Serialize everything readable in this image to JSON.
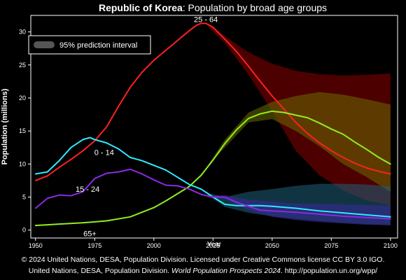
{
  "chart_data": {
    "type": "line",
    "title_bold": "Republic of Korea",
    "title_rest": ": Population by broad age groups",
    "xlabel": "Year",
    "ylabel": "Population (millions)",
    "xlim": [
      1948,
      2103
    ],
    "ylim": [
      -1.2,
      32.5
    ],
    "xticks": [
      1950,
      1975,
      2000,
      2025,
      2050,
      2075,
      2100
    ],
    "yticks": [
      0,
      5,
      10,
      15,
      20,
      25,
      30
    ],
    "grid": false,
    "legend": {
      "position": "top-left",
      "label": "95% prediction interval"
    },
    "series": [
      {
        "name": "25 - 64",
        "label_at": [
          2022,
          31.9
        ],
        "color": "#ff2020",
        "band_color": "#8b0000",
        "x": [
          1950,
          1955,
          1960,
          1965,
          1970,
          1975,
          1980,
          1985,
          1990,
          1995,
          2000,
          2005,
          2010,
          2015,
          2018,
          2020,
          2022,
          2025,
          2030,
          2035,
          2040,
          2045,
          2050,
          2055,
          2060,
          2065,
          2070,
          2075,
          2080,
          2085,
          2090,
          2095,
          2100
        ],
        "values": [
          7.5,
          8.2,
          9.5,
          10.7,
          12.0,
          13.5,
          15.6,
          18.7,
          21.6,
          23.9,
          25.7,
          27.2,
          28.7,
          30.2,
          31.0,
          31.3,
          31.3,
          30.7,
          28.9,
          27.0,
          24.8,
          22.5,
          20.3,
          18.3,
          16.3,
          14.6,
          13.2,
          12.0,
          11.0,
          10.1,
          9.4,
          8.9,
          8.5
        ],
        "band_x": [
          2023,
          2030,
          2040,
          2050,
          2060,
          2070,
          2080,
          2090,
          2100
        ],
        "band_lower": [
          30.7,
          28.3,
          23.5,
          18.0,
          12.0,
          8.3,
          6.0,
          4.5,
          3.7
        ],
        "band_upper": [
          31.2,
          29.4,
          26.9,
          25.2,
          24.1,
          23.6,
          23.4,
          23.5,
          23.7
        ]
      },
      {
        "name": "65+",
        "label_at": [
          1973,
          -0.5
        ],
        "color": "#90ee20",
        "band_color": "#6b6b00",
        "x": [
          1950,
          1960,
          1970,
          1980,
          1990,
          2000,
          2005,
          2010,
          2015,
          2020,
          2025,
          2030,
          2035,
          2040,
          2045,
          2050,
          2055,
          2060,
          2065,
          2070,
          2075,
          2080,
          2085,
          2090,
          2095,
          2100
        ],
        "values": [
          0.7,
          0.9,
          1.1,
          1.4,
          2.0,
          3.4,
          4.4,
          5.5,
          6.6,
          8.3,
          10.6,
          13.1,
          15.2,
          16.9,
          17.6,
          18.0,
          17.8,
          17.4,
          17.0,
          16.2,
          15.3,
          14.5,
          13.3,
          12.2,
          11.0,
          10.0
        ],
        "band_x": [
          2023,
          2030,
          2040,
          2050,
          2060,
          2070,
          2080,
          2090,
          2100
        ],
        "band_lower": [
          9.8,
          12.5,
          16.3,
          16.8,
          15.0,
          12.7,
          10.0,
          8.0,
          5.8
        ],
        "band_upper": [
          9.9,
          13.7,
          17.8,
          19.4,
          20.3,
          20.9,
          20.5,
          19.8,
          19.0
        ]
      },
      {
        "name": "0 - 14",
        "label_at": [
          1979,
          11.8
        ],
        "color": "#30e8ff",
        "band_color": "#1f5f7a",
        "x": [
          1950,
          1955,
          1960,
          1965,
          1970,
          1973,
          1975,
          1980,
          1985,
          1990,
          1995,
          2000,
          2005,
          2010,
          2015,
          2020,
          2025,
          2030,
          2035,
          2040,
          2045,
          2050,
          2060,
          2070,
          2080,
          2090,
          2100
        ],
        "values": [
          8.5,
          8.8,
          10.5,
          12.5,
          13.7,
          14.0,
          13.7,
          13.2,
          12.3,
          11.0,
          10.5,
          9.8,
          9.1,
          8.0,
          6.9,
          6.2,
          5.0,
          3.9,
          3.7,
          3.7,
          3.7,
          3.6,
          3.3,
          2.9,
          2.6,
          2.3,
          2.0
        ],
        "band_x": [
          2023,
          2030,
          2040,
          2050,
          2060,
          2070,
          2080,
          2090,
          2100
        ],
        "band_lower": [
          5.2,
          3.5,
          2.6,
          2.1,
          1.7,
          1.4,
          1.1,
          0.9,
          0.8
        ],
        "band_upper": [
          5.6,
          5.0,
          5.8,
          6.2,
          6.7,
          7.0,
          7.0,
          6.9,
          6.6
        ]
      },
      {
        "name": "15 - 24",
        "label_at": [
          1972,
          6.2
        ],
        "color": "#8a2be2",
        "band_color": "#3a2a9a",
        "x": [
          1950,
          1955,
          1960,
          1965,
          1970,
          1975,
          1980,
          1985,
          1990,
          1995,
          2000,
          2005,
          2010,
          2015,
          2020,
          2025,
          2030,
          2035,
          2040,
          2045,
          2050,
          2060,
          2070,
          2080,
          2090,
          2100
        ],
        "values": [
          3.3,
          4.8,
          5.3,
          5.2,
          5.8,
          7.8,
          8.6,
          8.8,
          9.2,
          8.5,
          7.6,
          6.8,
          6.7,
          6.2,
          5.4,
          5.0,
          5.0,
          4.2,
          3.6,
          3.0,
          2.9,
          2.7,
          2.4,
          2.1,
          1.9,
          1.7
        ],
        "band_x": [
          2023,
          2030,
          2040,
          2050,
          2060,
          2070,
          2080,
          2090,
          2100
        ],
        "band_lower": [
          5.0,
          4.7,
          3.0,
          2.0,
          1.5,
          1.2,
          1.0,
          0.8,
          0.7
        ],
        "band_upper": [
          5.2,
          5.3,
          4.6,
          4.3,
          4.0,
          4.0,
          3.9,
          3.8,
          3.7
        ]
      }
    ]
  },
  "footer": {
    "line1": "© 2024 United Nations, DESA, Population Division. Licensed under Creative Commons license CC BY 3.0 IGO.",
    "line2_a": "United Nations, DESA, Population Division. ",
    "line2_b": "World Population Prospects 2024",
    "line2_c": ". http://population.un.org/wpp/"
  }
}
